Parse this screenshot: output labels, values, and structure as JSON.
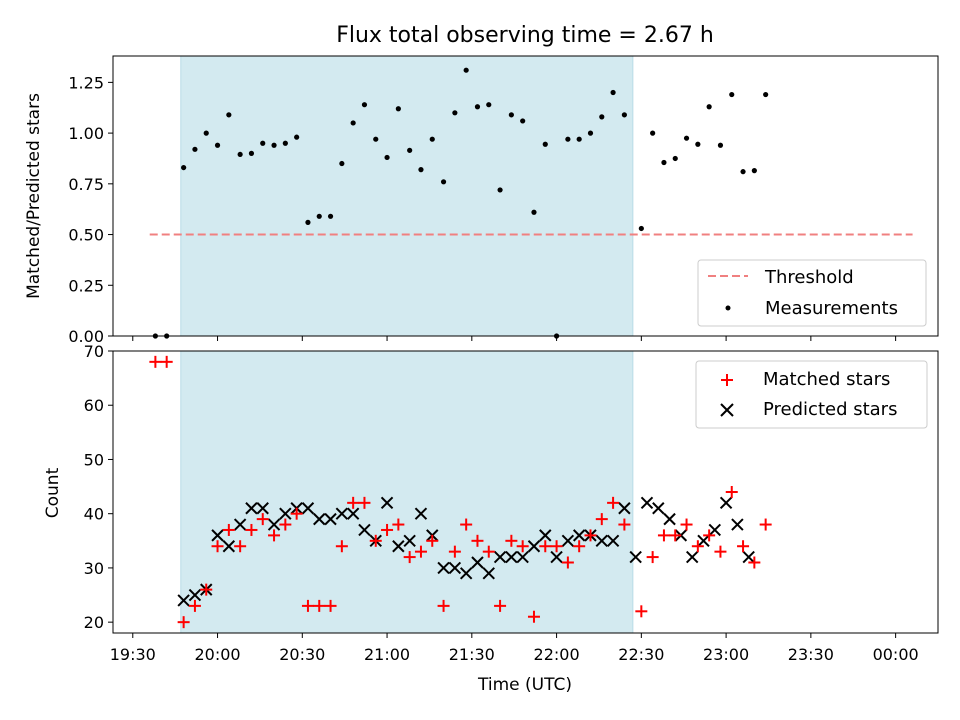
{
  "chart_data": [
    {
      "type": "scatter",
      "title": "Flux total observing time = 2.67 h",
      "ylabel": "Matched/Predicted stars",
      "xlabel": "",
      "ylim": [
        0,
        1.38
      ],
      "xlim": [
        "19:23",
        "00:15"
      ],
      "yticks": [
        "0.00",
        "0.25",
        "0.50",
        "0.75",
        "1.00",
        "1.25"
      ],
      "ytick_values": [
        0,
        0.25,
        0.5,
        0.75,
        1.0,
        1.25
      ],
      "grid": false,
      "legend": "bottom-right",
      "highlight_span": {
        "start": "19:47",
        "end": "22:27",
        "color": "#d3eaf0"
      },
      "threshold": {
        "name": "Threshold",
        "value": 0.5,
        "x_start": "19:36",
        "x_end": "00:06",
        "color": "#f08080"
      },
      "series": [
        {
          "name": "Measurements",
          "marker": "dot",
          "color": "#000000",
          "x": [
            "19:38",
            "19:42",
            "19:48",
            "19:52",
            "19:56",
            "20:00",
            "20:04",
            "20:08",
            "20:12",
            "20:16",
            "20:20",
            "20:24",
            "20:28",
            "20:32",
            "20:36",
            "20:40",
            "20:44",
            "20:48",
            "20:52",
            "20:56",
            "21:00",
            "21:04",
            "21:08",
            "21:12",
            "21:16",
            "21:20",
            "21:24",
            "21:28",
            "21:32",
            "21:36",
            "21:40",
            "21:44",
            "21:48",
            "21:52",
            "21:56",
            "22:00",
            "22:04",
            "22:08",
            "22:12",
            "22:16",
            "22:20",
            "22:24",
            "22:30",
            "22:34",
            "22:38",
            "22:42",
            "22:46",
            "22:50",
            "22:54",
            "22:58",
            "23:02",
            "23:06",
            "23:10",
            "23:14",
            "23:18",
            "23:22",
            "23:26",
            "23:30",
            "23:34",
            "23:38",
            "23:42",
            "23:46",
            "23:50",
            "23:54",
            "23:58",
            "00:02"
          ],
          "y": [
            0.0,
            0.0,
            0.83,
            0.92,
            1.0,
            0.94,
            1.09,
            0.895,
            0.9,
            0.95,
            0.94,
            0.95,
            0.98,
            0.56,
            0.59,
            0.59,
            0.85,
            1.05,
            1.14,
            0.97,
            0.88,
            1.12,
            0.915,
            0.82,
            0.97,
            0.76,
            1.1,
            1.31,
            1.13,
            1.14,
            0.72,
            1.09,
            1.06,
            0.61,
            0.945,
            0.0,
            0.97,
            0.97,
            1.0,
            1.08,
            1.2,
            1.09,
            0.53,
            1.0,
            0.855,
            0.875,
            0.975,
            0.945,
            1.13,
            0.94,
            1.19,
            0.81,
            0.815,
            1.19,
            null,
            null,
            null,
            null,
            null,
            null,
            null,
            null,
            null,
            null,
            null,
            null
          ]
        }
      ]
    },
    {
      "type": "scatter",
      "title": "",
      "ylabel": "Count",
      "xlabel": "Time (UTC)",
      "ylim": [
        18,
        70
      ],
      "xlim": [
        "19:23",
        "00:15"
      ],
      "yticks": [
        "20",
        "30",
        "40",
        "50",
        "60",
        "70"
      ],
      "ytick_values": [
        20,
        30,
        40,
        50,
        60,
        70
      ],
      "xticks": [
        "19:30",
        "20:00",
        "20:30",
        "21:00",
        "21:30",
        "22:00",
        "22:30",
        "23:00",
        "23:30",
        "00:00"
      ],
      "grid": false,
      "legend": "top-right",
      "highlight_span": {
        "start": "19:47",
        "end": "22:27",
        "color": "#d3eaf0"
      },
      "series": [
        {
          "name": "Matched stars",
          "marker": "plus",
          "color": "#ff0000",
          "x": [
            "19:38",
            "19:42",
            "19:48",
            "19:52",
            "19:56",
            "20:00",
            "20:04",
            "20:08",
            "20:12",
            "20:16",
            "20:20",
            "20:24",
            "20:28",
            "20:32",
            "20:36",
            "20:40",
            "20:44",
            "20:48",
            "20:52",
            "20:56",
            "21:00",
            "21:04",
            "21:08",
            "21:12",
            "21:16",
            "21:20",
            "21:24",
            "21:28",
            "21:32",
            "21:36",
            "21:40",
            "21:44",
            "21:48",
            "21:52",
            "21:56",
            "22:00",
            "22:04",
            "22:08",
            "22:12",
            "22:16",
            "22:20",
            "22:24",
            "22:30",
            "22:34",
            "22:38",
            "22:42",
            "22:46",
            "22:50",
            "22:54",
            "22:58",
            "23:02",
            "23:06",
            "23:10",
            "23:14",
            "23:18",
            "23:22",
            "23:26",
            "23:30",
            "23:34",
            "23:38",
            "23:42",
            "23:46",
            "23:50",
            "23:54",
            "23:58",
            "00:02"
          ],
          "y": [
            68,
            68,
            20,
            23,
            26,
            34,
            37,
            34,
            37,
            39,
            36,
            38,
            40,
            23,
            23,
            23,
            34,
            42,
            42,
            35,
            37,
            38,
            32,
            33,
            35,
            23,
            33,
            38,
            35,
            33,
            23,
            35,
            34,
            21,
            34,
            34,
            31,
            34,
            36,
            39,
            42,
            38,
            22,
            32,
            36,
            36,
            38,
            34,
            36,
            33,
            44,
            34,
            31,
            38,
            null,
            null,
            null,
            null,
            null,
            null,
            null,
            null,
            null,
            null,
            null,
            null
          ]
        },
        {
          "name": "Predicted stars",
          "marker": "x",
          "color": "#000000",
          "x": [
            "19:48",
            "19:52",
            "19:56",
            "20:00",
            "20:04",
            "20:08",
            "20:12",
            "20:16",
            "20:20",
            "20:24",
            "20:28",
            "20:32",
            "20:36",
            "20:40",
            "20:44",
            "20:48",
            "20:52",
            "20:56",
            "21:00",
            "21:04",
            "21:08",
            "21:12",
            "21:16",
            "21:20",
            "21:24",
            "21:28",
            "21:32",
            "21:36",
            "21:40",
            "21:44",
            "21:48",
            "21:52",
            "21:56",
            "22:00",
            "22:04",
            "22:08",
            "22:12",
            "22:16",
            "22:20",
            "22:24",
            "22:28",
            "22:32",
            "22:36",
            "22:40",
            "22:44",
            "22:48",
            "22:52",
            "22:56",
            "23:00",
            "23:04",
            "23:08",
            "23:12",
            "23:16",
            "23:20",
            "23:24"
          ],
          "y": [
            24,
            25,
            26,
            36,
            34,
            38,
            41,
            41,
            38,
            40,
            41,
            41,
            39,
            39,
            40,
            40,
            37,
            35,
            42,
            34,
            35,
            40,
            36,
            30,
            30,
            29,
            31,
            29,
            32,
            32,
            32,
            34,
            36,
            32,
            35,
            36,
            36,
            35,
            35,
            41,
            32,
            42,
            41,
            39,
            36,
            32,
            35,
            37,
            42,
            38,
            32,
            null,
            null,
            null,
            null
          ]
        }
      ]
    }
  ]
}
